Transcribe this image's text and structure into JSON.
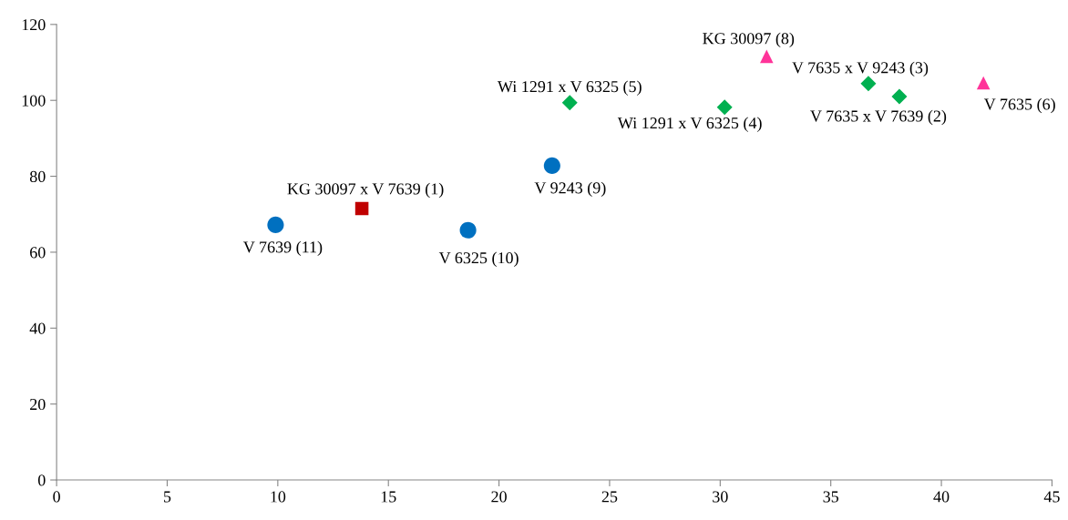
{
  "chart_data": {
    "type": "scatter",
    "xlim": [
      0,
      45
    ],
    "ylim": [
      0,
      120
    ],
    "xticks": [
      0,
      5,
      10,
      15,
      20,
      25,
      30,
      35,
      40,
      45
    ],
    "yticks": [
      0,
      20,
      40,
      60,
      80,
      100,
      120
    ],
    "grid": false,
    "legend": false,
    "series": [
      {
        "color": "#0070c0",
        "marker": "circle",
        "x": [
          9.9,
          18.6,
          22.4
        ],
        "values": [
          67.2,
          65.8,
          82.8
        ]
      },
      {
        "color": "#c00000",
        "marker": "square",
        "x": [
          13.8
        ],
        "values": [
          71.5
        ]
      },
      {
        "color": "#00b050",
        "marker": "diamond",
        "x": [
          23.2,
          30.2,
          36.7,
          38.1
        ],
        "values": [
          99.4,
          98.2,
          104.4,
          101
        ]
      },
      {
        "color": "#ff3399",
        "marker": "triangle",
        "x": [
          32.1,
          41.9
        ],
        "values": [
          111.6,
          104.6
        ]
      }
    ],
    "annotations": [
      {
        "text": "V 7639 (11)",
        "x": 9.9,
        "y": 67.2
      },
      {
        "text": "KG 30097 x V 7639 (1)",
        "x": 13.8,
        "y": 71.5
      },
      {
        "text": "V 6325 (10)",
        "x": 18.6,
        "y": 65.8
      },
      {
        "text": "V 9243 (9)",
        "x": 22.4,
        "y": 82.8
      },
      {
        "text": "Wi 1291 x V 6325 (5)",
        "x": 23.2,
        "y": 99.4
      },
      {
        "text": "Wi 1291 x V 6325 (4)",
        "x": 30.2,
        "y": 98.2
      },
      {
        "text": "KG 30097 (8)",
        "x": 32.1,
        "y": 111.6
      },
      {
        "text": "V 7635 x V 9243 (3)",
        "x": 36.7,
        "y": 104.4
      },
      {
        "text": "V 7635 x V 7639 (2)",
        "x": 38.1,
        "y": 101
      },
      {
        "text": "V 7635 (6)",
        "x": 41.9,
        "y": 104.6
      }
    ]
  }
}
